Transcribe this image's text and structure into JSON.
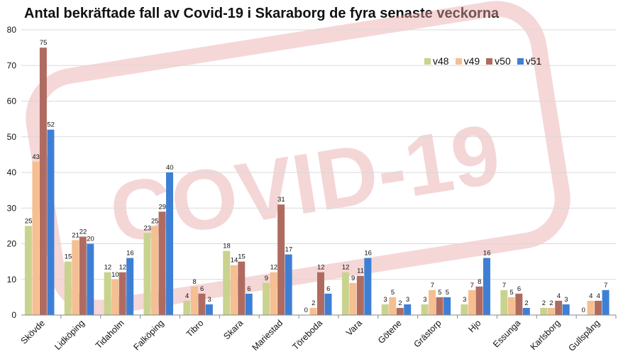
{
  "chart_data": {
    "type": "bar",
    "title": "Antal bekräftade fall av Covid-19 i Skaraborg de fyra senaste veckorna",
    "xlabel": "",
    "ylabel": "",
    "ylim": [
      0,
      80
    ],
    "yticks": [
      "0",
      "10",
      "20",
      "30",
      "40",
      "50",
      "60",
      "70",
      "80"
    ],
    "grid": true,
    "legend_position": "top-right",
    "watermark": "COVID-19",
    "categories": [
      "Skövde",
      "Lidköping",
      "Tidaholm",
      "Falköping",
      "Tibro",
      "Skara",
      "Mariestad",
      "Töreboda",
      "Vara",
      "Götene",
      "Grästorp",
      "Hjo",
      "Essunga",
      "Karlsborg",
      "Gullspång"
    ],
    "series": [
      {
        "name": "v48",
        "color": "#c9d38f",
        "values": [
          25,
          15,
          12,
          23,
          4,
          18,
          9,
          0,
          12,
          3,
          3,
          3,
          7,
          2,
          0
        ]
      },
      {
        "name": "v49",
        "color": "#f5bf91",
        "values": [
          43,
          21,
          10,
          25,
          8,
          14,
          12,
          2,
          9,
          5,
          7,
          7,
          5,
          2,
          4
        ]
      },
      {
        "name": "v50",
        "color": "#b06b60",
        "values": [
          75,
          22,
          12,
          29,
          6,
          15,
          31,
          12,
          11,
          2,
          5,
          8,
          6,
          4,
          4
        ]
      },
      {
        "name": "v51",
        "color": "#3e7fd6",
        "values": [
          52,
          20,
          16,
          40,
          3,
          6,
          17,
          6,
          16,
          3,
          5,
          16,
          2,
          3,
          7
        ]
      }
    ]
  }
}
